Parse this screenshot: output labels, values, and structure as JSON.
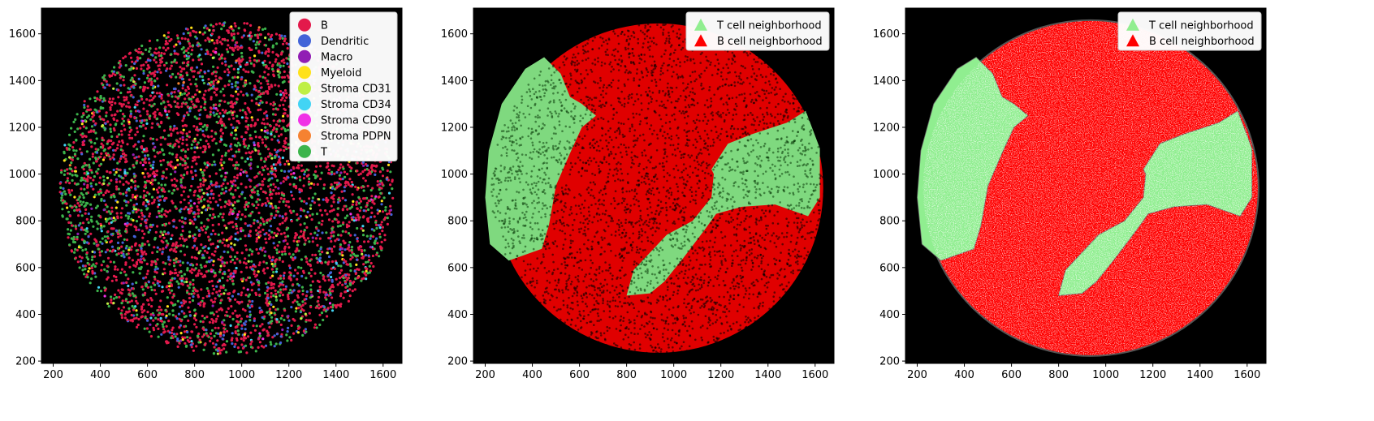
{
  "chart_data": [
    {
      "type": "scatter",
      "variant": "cell_types",
      "title": "",
      "xlabel": "",
      "ylabel": "",
      "xlim": [
        150,
        1680
      ],
      "ylim": [
        190,
        1710
      ],
      "xticks": [
        200,
        400,
        600,
        800,
        1000,
        1200,
        1400,
        1600
      ],
      "yticks": [
        200,
        400,
        600,
        800,
        1000,
        1200,
        1400,
        1600
      ],
      "background": "#000000",
      "grid": false,
      "legend_position": "top-right",
      "legend_marker": "circle",
      "disk": {
        "center": [
          935,
          940
        ],
        "radius": 710
      },
      "series": [
        {
          "name": "B",
          "color": "#e3194b"
        },
        {
          "name": "Dendritic",
          "color": "#4363d8"
        },
        {
          "name": "Macro",
          "color": "#911eb4"
        },
        {
          "name": "Myeloid",
          "color": "#ffe119"
        },
        {
          "name": "Stroma CD31",
          "color": "#bfef45"
        },
        {
          "name": "Stroma CD34",
          "color": "#42d4f4"
        },
        {
          "name": "Stroma CD90",
          "color": "#f032e6"
        },
        {
          "name": "Stroma PDPN",
          "color": "#f58231"
        },
        {
          "name": "T",
          "color": "#3cb44b"
        }
      ]
    },
    {
      "type": "scatter",
      "variant": "neighborhoods_points",
      "title": "",
      "xlabel": "",
      "ylabel": "",
      "xlim": [
        150,
        1680
      ],
      "ylim": [
        190,
        1710
      ],
      "xticks": [
        200,
        400,
        600,
        800,
        1000,
        1200,
        1400,
        1600
      ],
      "yticks": [
        200,
        400,
        600,
        800,
        1000,
        1200,
        1400,
        1600
      ],
      "background": "#000000",
      "grid": false,
      "legend_position": "top-right",
      "legend_marker": "triangle",
      "disk": {
        "center": [
          935,
          940
        ],
        "radius": 710
      },
      "series": [
        {
          "name": "T cell neighborhood",
          "color": "#90ee90"
        },
        {
          "name": "B cell neighborhood",
          "color": "#ff0000"
        }
      ],
      "t_regions": [
        [
          [
            450,
            1500
          ],
          [
            520,
            1430
          ],
          [
            560,
            1330
          ],
          [
            610,
            1300
          ],
          [
            670,
            1250
          ],
          [
            610,
            1200
          ],
          [
            560,
            1090
          ],
          [
            500,
            950
          ],
          [
            470,
            780
          ],
          [
            440,
            680
          ],
          [
            300,
            630
          ],
          [
            220,
            700
          ],
          [
            200,
            900
          ],
          [
            215,
            1100
          ],
          [
            270,
            1300
          ],
          [
            370,
            1450
          ]
        ],
        [
          [
            1160,
            1020
          ],
          [
            1230,
            1130
          ],
          [
            1330,
            1170
          ],
          [
            1480,
            1220
          ],
          [
            1560,
            1270
          ],
          [
            1620,
            1110
          ],
          [
            1620,
            900
          ],
          [
            1570,
            820
          ],
          [
            1430,
            870
          ],
          [
            1290,
            860
          ],
          [
            1180,
            830
          ],
          [
            1130,
            760
          ],
          [
            1100,
            720
          ],
          [
            1040,
            640
          ],
          [
            960,
            540
          ],
          [
            900,
            490
          ],
          [
            800,
            480
          ],
          [
            830,
            590
          ],
          [
            970,
            740
          ],
          [
            1080,
            800
          ],
          [
            1160,
            900
          ],
          [
            1170,
            1000
          ]
        ]
      ]
    },
    {
      "type": "scatter",
      "variant": "neighborhoods_regions",
      "title": "",
      "xlabel": "",
      "ylabel": "",
      "xlim": [
        150,
        1680
      ],
      "ylim": [
        190,
        1710
      ],
      "xticks": [
        200,
        400,
        600,
        800,
        1000,
        1200,
        1400,
        1600
      ],
      "yticks": [
        200,
        400,
        600,
        800,
        1000,
        1200,
        1400,
        1600
      ],
      "background": "#000000",
      "grid": false,
      "legend_position": "top-right",
      "legend_marker": "triangle",
      "disk": {
        "center": [
          935,
          940
        ],
        "radius": 710
      },
      "series": [
        {
          "name": "T cell neighborhood",
          "color": "#90ee90"
        },
        {
          "name": "B cell neighborhood",
          "color": "#ff0000"
        }
      ],
      "t_regions": [
        [
          [
            450,
            1500
          ],
          [
            520,
            1430
          ],
          [
            560,
            1330
          ],
          [
            610,
            1300
          ],
          [
            670,
            1250
          ],
          [
            610,
            1200
          ],
          [
            560,
            1090
          ],
          [
            500,
            950
          ],
          [
            470,
            780
          ],
          [
            440,
            680
          ],
          [
            300,
            630
          ],
          [
            220,
            700
          ],
          [
            200,
            900
          ],
          [
            215,
            1100
          ],
          [
            270,
            1300
          ],
          [
            370,
            1450
          ]
        ],
        [
          [
            1160,
            1020
          ],
          [
            1230,
            1130
          ],
          [
            1330,
            1170
          ],
          [
            1480,
            1220
          ],
          [
            1560,
            1270
          ],
          [
            1620,
            1110
          ],
          [
            1620,
            900
          ],
          [
            1570,
            820
          ],
          [
            1430,
            870
          ],
          [
            1290,
            860
          ],
          [
            1180,
            830
          ],
          [
            1130,
            760
          ],
          [
            1100,
            720
          ],
          [
            1040,
            640
          ],
          [
            960,
            540
          ],
          [
            900,
            490
          ],
          [
            800,
            480
          ],
          [
            830,
            590
          ],
          [
            970,
            740
          ],
          [
            1080,
            800
          ],
          [
            1160,
            900
          ],
          [
            1170,
            1000
          ]
        ]
      ]
    }
  ]
}
